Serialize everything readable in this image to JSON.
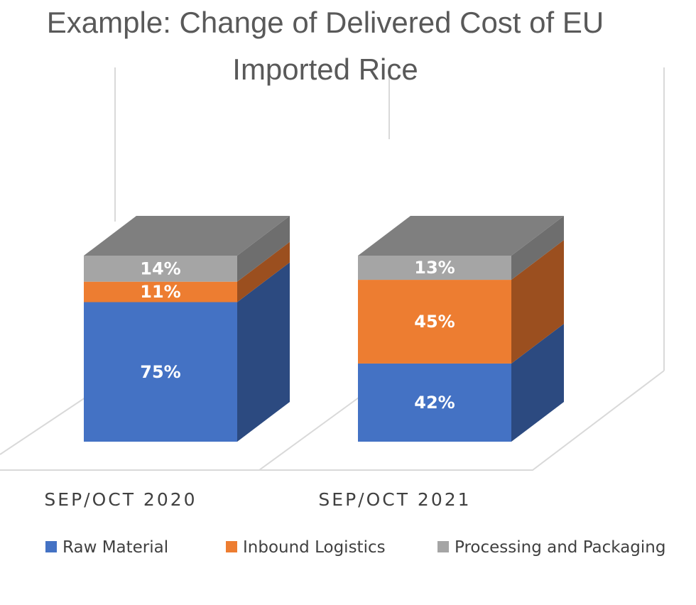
{
  "chart_data": {
    "type": "bar",
    "stacked": true,
    "three_d": true,
    "title": "Example: Change of Delivered Cost of EU Imported Rice",
    "title_lines": [
      "Example: Change of Delivered Cost of EU",
      "Imported Rice"
    ],
    "categories": [
      "SEP/OCT 2020",
      "SEP/OCT 2021"
    ],
    "series": [
      {
        "name": "Raw Material",
        "values": [
          75,
          42
        ],
        "labels": [
          "75%",
          "42%"
        ],
        "color": "#4472c4",
        "side_color": "#2c4a80"
      },
      {
        "name": "Inbound Logistics",
        "values": [
          11,
          45
        ],
        "labels": [
          "11%",
          "45%"
        ],
        "color": "#ed7d31",
        "side_color": "#9b4f1f"
      },
      {
        "name": "Processing and Packaging",
        "values": [
          14,
          13
        ],
        "labels": [
          "14%",
          "13%"
        ],
        "color": "#a5a5a5",
        "side_color": "#6e6e6e",
        "top_color": "#7f7f7f"
      }
    ],
    "value_unit": "%",
    "gridlines": false,
    "legend_position": "bottom"
  }
}
